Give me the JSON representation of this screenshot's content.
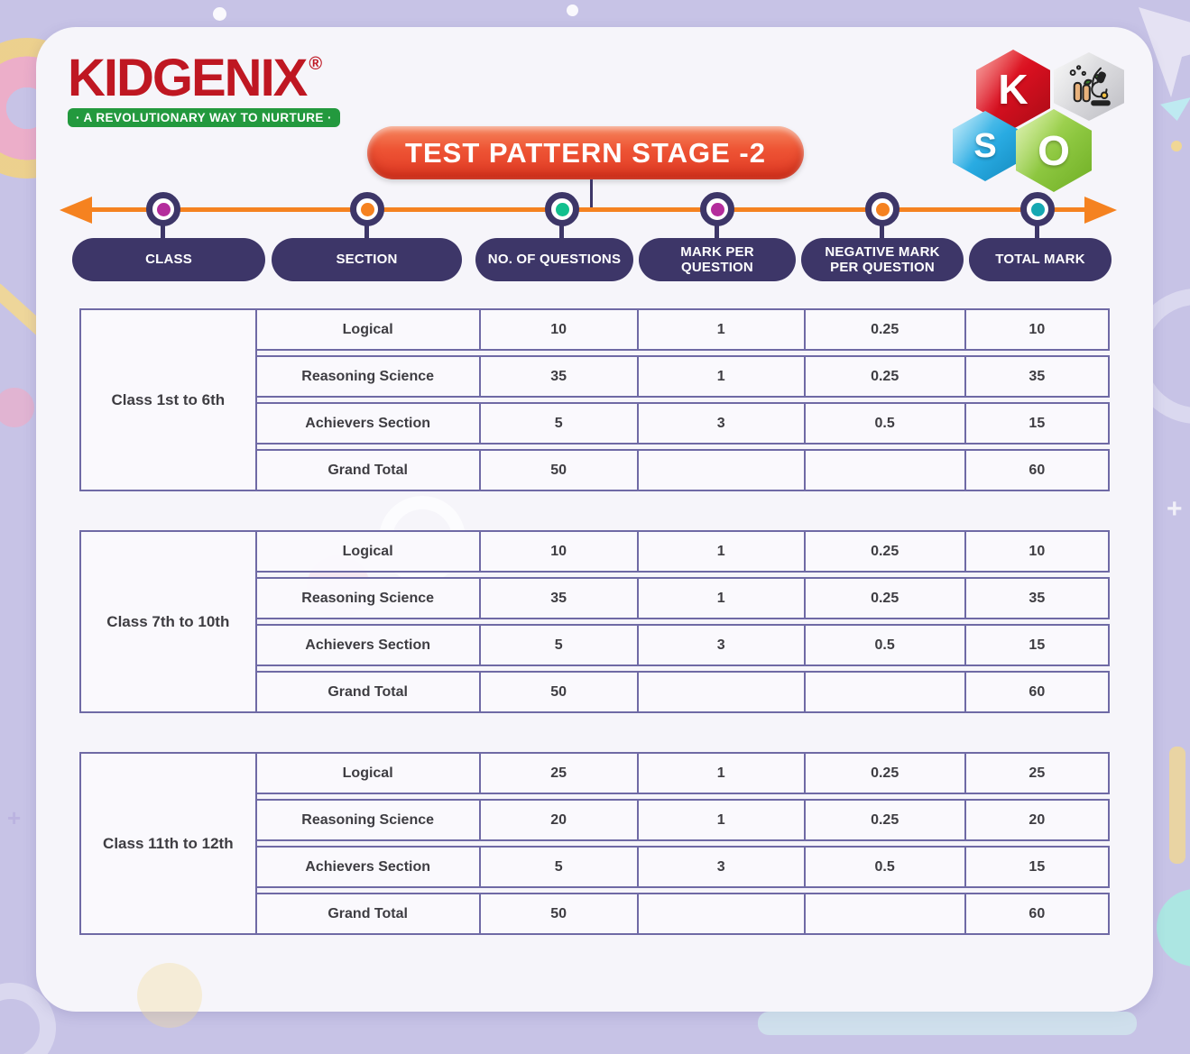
{
  "brand": {
    "name": "KIDGENIX",
    "registered_mark": "®",
    "tagline": "· A REVOLUTIONARY WAY TO NURTURE ·"
  },
  "kso_logo": {
    "hexagons": [
      {
        "letter": "K",
        "color": "#da1020"
      },
      {
        "icon": "lab-microscope-icon",
        "color": "#d4d4d8"
      },
      {
        "letter": "S",
        "color": "#29abe2"
      },
      {
        "letter": "O",
        "color": "#8cc63f"
      }
    ]
  },
  "title": {
    "text": "TEST PATTERN STAGE -2"
  },
  "palette": {
    "logo_red": "#bf1722",
    "logo_green": "#23993e",
    "title_red": "#e03823",
    "orange": "#f58220",
    "navy": "#3d3668",
    "table_border": "#6f6aa5"
  },
  "timeline": {
    "columns": [
      {
        "label": "CLASS",
        "dot_color": "#b42d9c"
      },
      {
        "label": "SECTION",
        "dot_color": "#f58220"
      },
      {
        "label": "NO. OF QUESTIONS",
        "dot_color": "#12c08e"
      },
      {
        "label": "MARK PER QUESTION",
        "dot_color": "#b42d9c"
      },
      {
        "label": "NEGATIVE MARK PER QUESTION",
        "dot_color": "#f58220"
      },
      {
        "label": "TOTAL MARK",
        "dot_color": "#16a8b2"
      }
    ]
  },
  "tables": [
    {
      "class_label": "Class 1st to 6th",
      "rows": [
        {
          "section": "Logical",
          "questions": "10",
          "mark": "1",
          "negative": "0.25",
          "total": "10"
        },
        {
          "section": "Reasoning Science",
          "questions": "35",
          "mark": "1",
          "negative": "0.25",
          "total": "35"
        },
        {
          "section": "Achievers Section",
          "questions": "5",
          "mark": "3",
          "negative": "0.5",
          "total": "15"
        },
        {
          "section": "Grand Total",
          "questions": "50",
          "mark": "",
          "negative": "",
          "total": "60"
        }
      ]
    },
    {
      "class_label": "Class 7th to 10th",
      "rows": [
        {
          "section": "Logical",
          "questions": "10",
          "mark": "1",
          "negative": "0.25",
          "total": "10"
        },
        {
          "section": "Reasoning Science",
          "questions": "35",
          "mark": "1",
          "negative": "0.25",
          "total": "35"
        },
        {
          "section": "Achievers Section",
          "questions": "5",
          "mark": "3",
          "negative": "0.5",
          "total": "15"
        },
        {
          "section": "Grand Total",
          "questions": "50",
          "mark": "",
          "negative": "",
          "total": "60"
        }
      ]
    },
    {
      "class_label": "Class 11th to 12th",
      "rows": [
        {
          "section": "Logical",
          "questions": "25",
          "mark": "1",
          "negative": "0.25",
          "total": "25"
        },
        {
          "section": "Reasoning Science",
          "questions": "20",
          "mark": "1",
          "negative": "0.25",
          "total": "20"
        },
        {
          "section": "Achievers Section",
          "questions": "5",
          "mark": "3",
          "negative": "0.5",
          "total": "15"
        },
        {
          "section": "Grand Total",
          "questions": "50",
          "mark": "",
          "negative": "",
          "total": "60"
        }
      ]
    }
  ]
}
